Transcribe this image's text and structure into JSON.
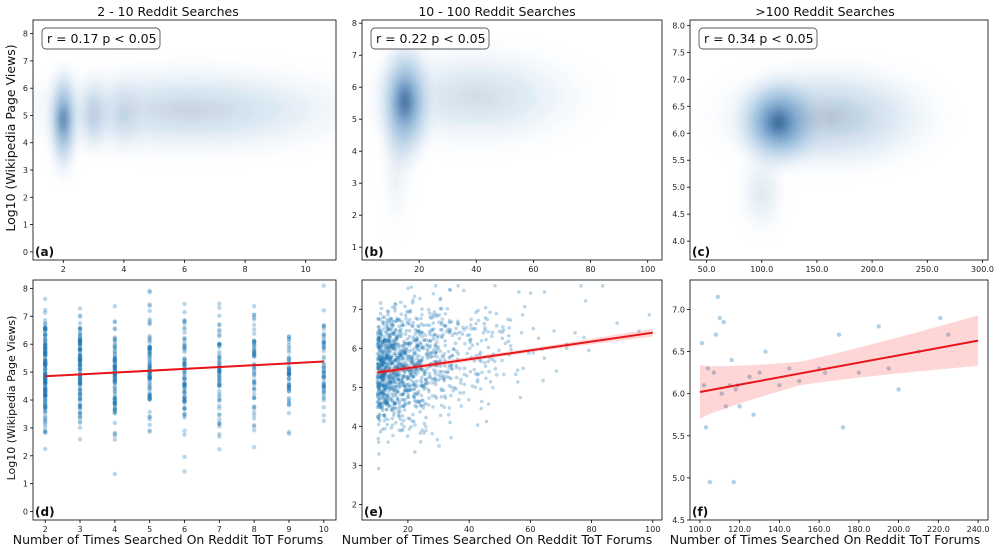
{
  "figure": {
    "ylabel_top": "Log10 (Wikipedia Page Views)",
    "ylabel_bottom": "Log10 (Wikipedia Page Views)",
    "xlabel": "Number of Times Searched On Reddit ToT Forums"
  },
  "chart_data": [
    {
      "id": "a",
      "type": "density",
      "panel_label": "(a)",
      "title": "2 - 10 Reddit Searches",
      "annotation": "r = 0.17  p < 0.05",
      "xlim": [
        1.0,
        11.0
      ],
      "ylim": [
        -0.3,
        8.5
      ],
      "xticks": [
        2,
        4,
        6,
        8,
        10
      ],
      "yticks": [
        0,
        1,
        2,
        3,
        4,
        5,
        6,
        7,
        8
      ],
      "tick_decimals": 0,
      "density_blobs": [
        {
          "x": 6.2,
          "y": 5.2,
          "sx": 3.2,
          "sy": 0.95,
          "w": 0.22
        },
        {
          "x": 2.0,
          "y": 4.8,
          "sx": 0.25,
          "sy": 1.1,
          "w": 0.55
        },
        {
          "x": 2.0,
          "y": 4.85,
          "sx": 0.12,
          "sy": 0.45,
          "w": 0.55
        },
        {
          "x": 3.0,
          "y": 5.0,
          "sx": 0.28,
          "sy": 0.8,
          "w": 0.22
        },
        {
          "x": 4.0,
          "y": 5.0,
          "sx": 0.35,
          "sy": 0.8,
          "w": 0.12
        }
      ]
    },
    {
      "id": "b",
      "type": "density",
      "panel_label": "(b)",
      "title": "10 - 100 Reddit Searches",
      "annotation": "r = 0.22  p < 0.05",
      "xlim": [
        0,
        105
      ],
      "ylim": [
        0.6,
        8.1
      ],
      "xticks": [
        20,
        40,
        60,
        80,
        100
      ],
      "yticks": [
        1,
        2,
        3,
        4,
        5,
        6,
        7,
        8
      ],
      "tick_decimals": 0,
      "density_blobs": [
        {
          "x": 40,
          "y": 5.7,
          "sx": 22,
          "sy": 0.9,
          "w": 0.18
        },
        {
          "x": 15,
          "y": 5.5,
          "sx": 5,
          "sy": 1.1,
          "w": 0.55
        },
        {
          "x": 15,
          "y": 5.55,
          "sx": 2.6,
          "sy": 0.5,
          "w": 0.55
        },
        {
          "x": 12,
          "y": 3.5,
          "sx": 3,
          "sy": 1.2,
          "w": 0.08
        }
      ]
    },
    {
      "id": "c",
      "type": "density",
      "panel_label": "(c)",
      "title": ">100 Reddit Searches",
      "annotation": "r = 0.34  p < 0.05",
      "xlim": [
        35,
        305
      ],
      "ylim": [
        3.65,
        8.1
      ],
      "xticks": [
        50,
        100,
        150,
        200,
        250,
        300
      ],
      "yticks": [
        4.0,
        4.5,
        5.0,
        5.5,
        6.0,
        6.5,
        7.0,
        7.5,
        8.0
      ],
      "tick_decimals": 1,
      "density_blobs": [
        {
          "x": 160,
          "y": 6.3,
          "sx": 55,
          "sy": 0.55,
          "w": 0.3
        },
        {
          "x": 115,
          "y": 6.2,
          "sx": 20,
          "sy": 0.45,
          "w": 0.6
        },
        {
          "x": 115,
          "y": 6.2,
          "sx": 10,
          "sy": 0.22,
          "w": 0.45
        },
        {
          "x": 100,
          "y": 4.9,
          "sx": 12,
          "sy": 0.45,
          "w": 0.12
        }
      ]
    },
    {
      "id": "d",
      "type": "scatter",
      "panel_label": "(d)",
      "xlim": [
        1.65,
        10.35
      ],
      "ylim": [
        -0.3,
        8.3
      ],
      "xticks": [
        2,
        3,
        4,
        5,
        6,
        7,
        8,
        9,
        10
      ],
      "yticks": [
        0,
        1,
        2,
        3,
        4,
        5,
        6,
        7,
        8
      ],
      "tick_decimals": 0,
      "scatter": {
        "mode": "columns",
        "columns": [
          2,
          3,
          4,
          5,
          6,
          7,
          8,
          9,
          10
        ],
        "points_per_column": [
          160,
          120,
          100,
          90,
          80,
          70,
          60,
          55,
          55
        ],
        "mean": 5.0,
        "sd": 1.05,
        "min": 0,
        "max": 8.1
      },
      "regression": {
        "x": [
          2,
          10
        ],
        "y": [
          4.85,
          5.38
        ],
        "ci": null
      }
    },
    {
      "id": "e",
      "type": "scatter",
      "panel_label": "(e)",
      "xlim": [
        5,
        103
      ],
      "ylim": [
        1.6,
        7.75
      ],
      "xticks": [
        20,
        40,
        60,
        80,
        100
      ],
      "yticks": [
        2,
        3,
        4,
        5,
        6,
        7
      ],
      "tick_decimals": 0,
      "scatter": {
        "mode": "cloud",
        "n": 1300,
        "x_min": 10,
        "x_max": 100,
        "decay": 12,
        "y_intercept": 5.3,
        "slope": 0.011,
        "sd": 0.75,
        "y_min": 1.8,
        "y_max": 7.6
      },
      "regression": {
        "x": [
          10,
          100
        ],
        "y": [
          5.38,
          6.4
        ],
        "ci": [
          [
            10,
            0.08
          ],
          [
            60,
            0.05
          ],
          [
            100,
            0.1
          ]
        ]
      }
    },
    {
      "id": "f",
      "type": "scatter",
      "panel_label": "(f)",
      "xlim": [
        95,
        245
      ],
      "ylim": [
        4.5,
        7.35
      ],
      "xticks": [
        100,
        120,
        140,
        160,
        180,
        200,
        220,
        240
      ],
      "yticks": [
        4.5,
        5.0,
        5.5,
        6.0,
        6.5,
        7.0
      ],
      "tick_decimals": 1,
      "scatter": {
        "mode": "points",
        "points": [
          [
            101,
            6.6
          ],
          [
            102,
            6.1
          ],
          [
            103,
            5.6
          ],
          [
            104,
            6.3
          ],
          [
            105,
            4.95
          ],
          [
            107,
            6.25
          ],
          [
            108,
            6.7
          ],
          [
            109,
            7.15
          ],
          [
            110,
            6.9
          ],
          [
            111,
            6.0
          ],
          [
            112,
            6.85
          ],
          [
            113,
            5.85
          ],
          [
            115,
            6.1
          ],
          [
            116,
            6.4
          ],
          [
            117,
            4.95
          ],
          [
            118,
            6.05
          ],
          [
            119,
            6.1
          ],
          [
            120,
            5.85
          ],
          [
            125,
            6.2
          ],
          [
            127,
            5.75
          ],
          [
            130,
            6.25
          ],
          [
            133,
            6.5
          ],
          [
            140,
            6.1
          ],
          [
            145,
            6.3
          ],
          [
            150,
            6.15
          ],
          [
            160,
            6.3
          ],
          [
            163,
            6.25
          ],
          [
            170,
            6.7
          ],
          [
            172,
            5.6
          ],
          [
            180,
            6.25
          ],
          [
            190,
            6.8
          ],
          [
            195,
            6.3
          ],
          [
            200,
            6.05
          ],
          [
            210,
            6.5
          ],
          [
            221,
            6.9
          ],
          [
            225,
            6.7
          ]
        ]
      },
      "regression": {
        "x": [
          100,
          240
        ],
        "y": [
          6.02,
          6.63
        ],
        "ci": [
          [
            100,
            0.32
          ],
          [
            150,
            0.14
          ],
          [
            240,
            0.3
          ]
        ]
      }
    }
  ]
}
